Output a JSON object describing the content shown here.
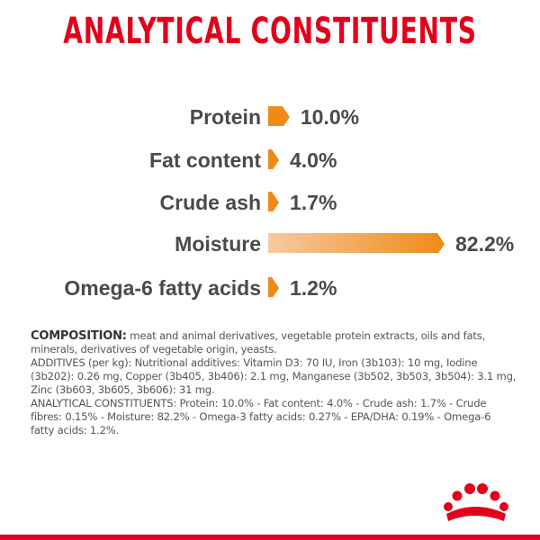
{
  "title": "ANALYTICAL CONSTITUENTS",
  "accent_color": "#e2001a",
  "bar_color_start": "#f8c9a0",
  "bar_color_end": "#ef8a16",
  "constituents": [
    {
      "name": "Protein",
      "value_text": "10.0%",
      "percent": 10.0
    },
    {
      "name": "Fat content",
      "value_text": "4.0%",
      "percent": 4.0
    },
    {
      "name": "Crude ash",
      "value_text": "1.7%",
      "percent": 1.7
    },
    {
      "name": "Moisture",
      "value_text": "82.2%",
      "percent": 82.2
    },
    {
      "name": "Omega-6 fatty acids",
      "value_text": "1.2%",
      "percent": 1.2
    }
  ],
  "composition": {
    "heading": "COMPOSITION:",
    "text": " meat and animal derivatives, vegetable protein extracts, oils and fats, minerals, derivatives of vegetable origin, yeasts.",
    "additives": "ADDITIVES (per kg): Nutritional additives: Vitamin D3: 70 IU, Iron (3b103): 10 mg, Iodine (3b202): 0.26 mg, Copper (3b405, 3b406): 2.1 mg, Manganese (3b502, 3b503, 3b504): 3.1 mg, Zinc (3b603, 3b605, 3b606): 31 mg.",
    "analytical": "ANALYTICAL CONSTITUENTS: Protein: 10.0% - Fat content: 4.0% - Crude ash: 1.7% - Crude fibres: 0.15% - Moisture: 82.2% - Omega-3 fatty acids: 0.27% - EPA/DHA: 0.19% - Omega-6 fatty acids: 1.2%."
  },
  "logo_icon": "crown-icon"
}
